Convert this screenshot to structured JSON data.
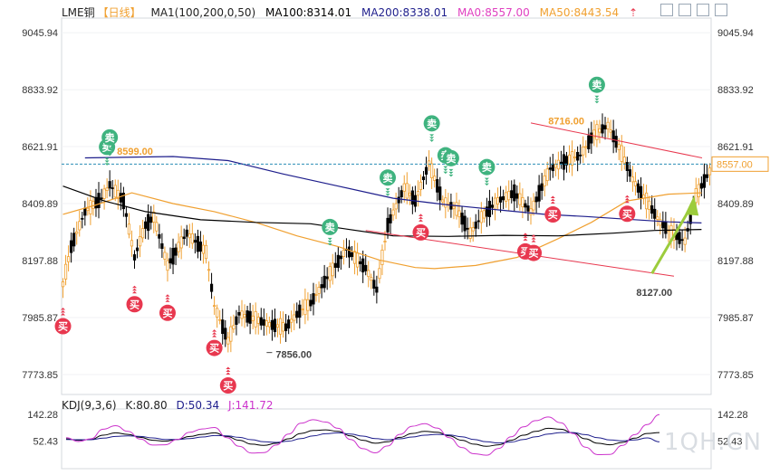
{
  "header": {
    "symbol": "LME铜",
    "period": "【日线】",
    "ma_spec": "MA1(100,200,0,50)",
    "ma100": "MA100:8314.01",
    "ma200": "MA200:8338.01",
    "ma0": "MA0:8557.00",
    "ma50": "MA50:8443.54"
  },
  "kdj_header": {
    "spec": "KDJ(9,3,6)",
    "k": "K:80.80",
    "d": "D:50.34",
    "j": "J:141.72"
  },
  "watermark": "1QH.CN",
  "colors": {
    "up": "#f0a030",
    "down": "#000000",
    "ma50": "#f0a030",
    "ma100": "#000000",
    "ma200": "#1e1e8c",
    "ma0": "#2a8db5",
    "sell_badge": "#3fb37f",
    "buy_badge": "#e8384f",
    "channel": "#e8384f",
    "arrow": "#9ccc3c",
    "k_line": "#000000",
    "d_line": "#1e1e8c",
    "j_line": "#cc33cc"
  },
  "chart_data": [
    {
      "type": "candlestick",
      "title": "LME铜【日线】",
      "ylim": [
        7700,
        9100
      ],
      "yticks": [
        "9045.94",
        "8833.92",
        "8621.91",
        "8409.89",
        "8197.88",
        "7985.87",
        "7773.85"
      ],
      "price_marker": "8557.00",
      "reference_line": 8557.0,
      "annotations": [
        "8599.00",
        "7856.00",
        "8716.00",
        "8127.00"
      ],
      "buy_label": "买",
      "sell_label": "卖",
      "series": [
        {
          "name": "MA50",
          "points": [
            [
              0,
              8370
            ],
            [
              12,
              8405
            ],
            [
              25,
              8450
            ],
            [
              40,
              8410
            ],
            [
              55,
              8380
            ],
            [
              70,
              8340
            ],
            [
              85,
              8290
            ],
            [
              100,
              8250
            ],
            [
              115,
              8200
            ],
            [
              128,
              8172
            ],
            [
              135,
              8168
            ],
            [
              150,
              8180
            ],
            [
              165,
              8210
            ],
            [
              180,
              8280
            ],
            [
              192,
              8340
            ],
            [
              205,
              8420
            ],
            [
              220,
              8445
            ],
            [
              232,
              8450
            ]
          ]
        },
        {
          "name": "MA100",
          "points": [
            [
              0,
              8475
            ],
            [
              15,
              8420
            ],
            [
              30,
              8380
            ],
            [
              50,
              8350
            ],
            [
              70,
              8340
            ],
            [
              90,
              8335
            ],
            [
              100,
              8320
            ],
            [
              120,
              8290
            ],
            [
              140,
              8288
            ],
            [
              160,
              8292
            ],
            [
              180,
              8290
            ],
            [
              200,
              8300
            ],
            [
              215,
              8310
            ],
            [
              232,
              8314
            ]
          ]
        },
        {
          "name": "MA200",
          "points": [
            [
              8,
              8580
            ],
            [
              40,
              8585
            ],
            [
              60,
              8570
            ],
            [
              80,
              8520
            ],
            [
              100,
              8475
            ],
            [
              120,
              8430
            ],
            [
              140,
              8405
            ],
            [
              160,
              8385
            ],
            [
              175,
              8370
            ],
            [
              190,
              8362
            ],
            [
              205,
              8352
            ],
            [
              220,
              8342
            ],
            [
              232,
              8338
            ]
          ]
        }
      ],
      "signals": {
        "sell_idx": [
          16,
          17,
          97,
          118,
          134,
          139,
          141,
          154,
          194
        ],
        "buy_idx": [
          0,
          26,
          38,
          55,
          60,
          130,
          168,
          171,
          178,
          205
        ]
      }
    },
    {
      "type": "line",
      "title": "KDJ(9,3,6)",
      "ylim": [
        -40,
        160
      ],
      "yticks": [
        "142.28",
        "52.43"
      ],
      "series": [
        {
          "name": "K",
          "values": [
            60,
            55,
            58,
            72,
            80,
            75,
            65,
            55,
            52,
            58,
            68,
            75,
            80,
            68,
            55,
            42,
            38,
            45,
            60,
            78,
            88,
            90,
            85,
            70,
            55,
            45,
            50,
            65,
            78,
            85,
            82,
            70,
            55,
            42,
            35,
            40,
            55,
            72,
            85,
            95,
            92,
            80,
            60,
            45,
            40,
            48,
            62,
            78,
            81
          ]
        },
        {
          "name": "D",
          "values": [
            58,
            57,
            57,
            62,
            68,
            70,
            68,
            63,
            58,
            58,
            61,
            66,
            71,
            70,
            65,
            57,
            50,
            48,
            52,
            61,
            70,
            77,
            80,
            76,
            69,
            61,
            57,
            60,
            66,
            72,
            75,
            73,
            67,
            58,
            50,
            46,
            49,
            58,
            67,
            76,
            81,
            81,
            74,
            64,
            56,
            53,
            56,
            63,
            50
          ]
        },
        {
          "name": "J",
          "values": [
            64,
            51,
            60,
            92,
            104,
            85,
            59,
            39,
            40,
            58,
            82,
            93,
            98,
            64,
            35,
            12,
            14,
            39,
            76,
            112,
            124,
            116,
            95,
            58,
            27,
            13,
            36,
            75,
            102,
            111,
            96,
            64,
            31,
            10,
            5,
            28,
            67,
            100,
            121,
            133,
            114,
            78,
            32,
            7,
            8,
            38,
            74,
            108,
            141
          ]
        }
      ]
    }
  ]
}
